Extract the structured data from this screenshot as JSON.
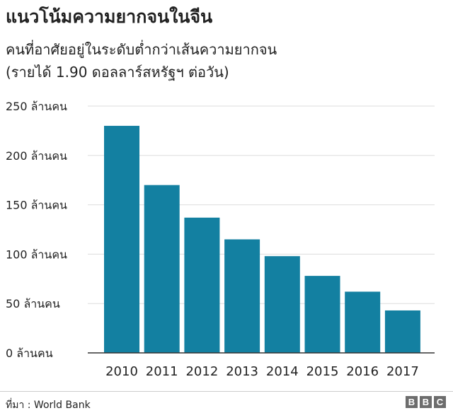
{
  "chart_data": {
    "type": "bar",
    "title": "แนวโน้มความยากจนในจีน",
    "subtitle": [
      "คนที่อาศัยอยู่ในระดับต่ำกว่าเส้นความยากจน",
      "(รายได้ 1.90 ดอลลาร์สหรัฐฯ ต่อวัน)"
    ],
    "categories": [
      "2010",
      "2011",
      "2012",
      "2013",
      "2014",
      "2015",
      "2016",
      "2017"
    ],
    "values": [
      230,
      170,
      137,
      115,
      98,
      78,
      62,
      43
    ],
    "ylim": [
      0,
      250
    ],
    "yticks": [
      0,
      50,
      100,
      150,
      200,
      250
    ],
    "ytick_suffix": "ล้านคน",
    "grid": true,
    "bar_color": "#1380A1"
  },
  "source": "ที่มา : World Bank",
  "logo": [
    "B",
    "B",
    "C"
  ]
}
